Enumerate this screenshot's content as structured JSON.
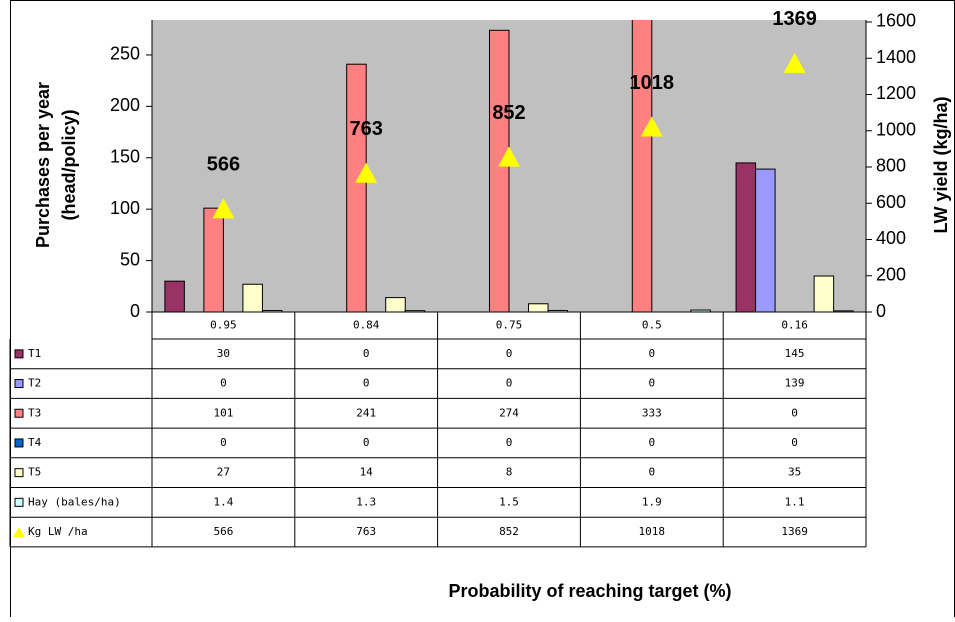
{
  "chart_data": {
    "type": "bar",
    "categories": [
      "0.95",
      "0.84",
      "0.75",
      "0.5",
      "0.16"
    ],
    "series": [
      {
        "name": "T1",
        "color": "#993366",
        "values": [
          30,
          0,
          0,
          0,
          145
        ]
      },
      {
        "name": "T2",
        "color": "#9999ff",
        "values": [
          0,
          0,
          0,
          0,
          139
        ]
      },
      {
        "name": "T3",
        "color": "#ff8080",
        "values": [
          101,
          241,
          274,
          333,
          0
        ]
      },
      {
        "name": "T4",
        "color": "#0066cc",
        "values": [
          0,
          0,
          0,
          0,
          0
        ]
      },
      {
        "name": "T5",
        "color": "#ffffcc",
        "values": [
          27,
          14,
          8,
          0,
          35
        ]
      },
      {
        "name": "Hay (bales/ha)",
        "color": "#ccffff",
        "values": [
          1.4,
          1.3,
          1.5,
          1.9,
          1.1
        ]
      },
      {
        "name": "Kg LW /ha",
        "color": "#ffff00",
        "marker": "triangle",
        "axis": "y2",
        "values": [
          566,
          763,
          852,
          1018,
          1369
        ]
      }
    ],
    "ylabel": [
      "Purchases per year",
      "(head/policy)"
    ],
    "y2label": "LW yield (kg/ha)",
    "xlabel": "Probability of reaching target (%)",
    "ylim": [
      0,
      284
    ],
    "yticks": [
      0,
      50,
      100,
      150,
      200,
      250
    ],
    "y2lim": [
      0,
      1611
    ],
    "y2ticks": [
      0,
      200,
      400,
      600,
      800,
      1000,
      1200,
      1400,
      1600
    ],
    "plot_background": "#c0c0c0",
    "grid": false,
    "data_table": true
  }
}
